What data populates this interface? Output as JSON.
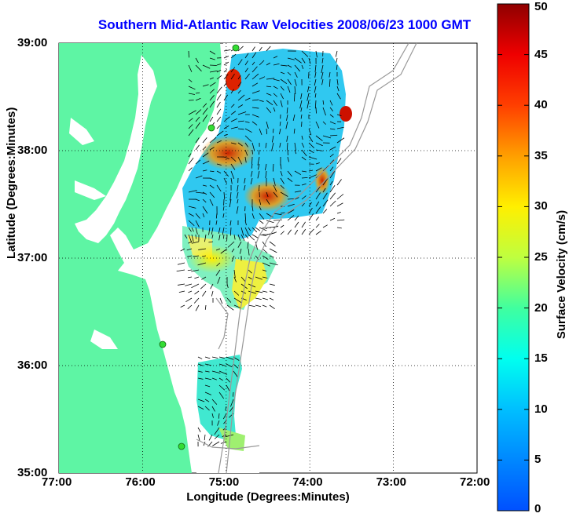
{
  "title": "Southern Mid-Atlantic Raw Velocities 2008/06/23 1000 GMT",
  "xlabel": "Longitude (Degrees:Minutes)",
  "ylabel": "Latitude (Degrees:Minutes)",
  "colorbar": {
    "label": "Surface Velocity (cm/s)",
    "min": 0,
    "max": 50,
    "ticks": [
      "0",
      "5",
      "10",
      "15",
      "20",
      "25",
      "30",
      "35",
      "40",
      "45",
      "50"
    ]
  },
  "axes": {
    "x_ticks": [
      "77:00",
      "76:00",
      "75:00",
      "74:00",
      "73:00",
      "72:00"
    ],
    "y_ticks": [
      "39:00",
      "38:00",
      "37:00",
      "36:00",
      "35:00"
    ],
    "xlim": [
      -77,
      -72
    ],
    "ylim": [
      35,
      39
    ],
    "grid": "dotted"
  },
  "colors": {
    "land": "#5ef5a4",
    "title": "#0000ff",
    "bathymetry": "#999999",
    "station": "#33dd33"
  }
}
